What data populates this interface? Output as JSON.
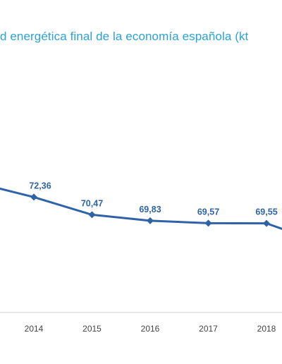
{
  "chart_data": {
    "type": "line",
    "title": "d energética final de la economía española (kt",
    "categories": [
      "2014",
      "2015",
      "2016",
      "2017",
      "2018"
    ],
    "series": [
      {
        "values": [
          72.36,
          70.47,
          69.83,
          69.57,
          69.55
        ],
        "labels": [
          "72,36",
          "70,47",
          "69,83",
          "69,57",
          "69,55"
        ]
      }
    ],
    "ylim": [
      60,
      77
    ],
    "grid": false,
    "line_color": "#2e63a8",
    "title_color": "#2aa3d6",
    "axis_color": "#cfcfcf"
  }
}
